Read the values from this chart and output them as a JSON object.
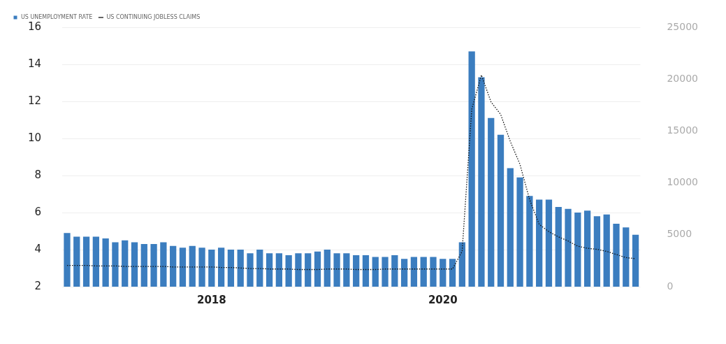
{
  "chart_data": {
    "type": "bar",
    "categories": [
      null,
      null,
      null,
      null,
      null,
      null,
      null,
      null,
      null,
      null,
      null,
      null,
      null,
      null,
      null,
      "2018",
      null,
      null,
      null,
      null,
      null,
      null,
      null,
      null,
      null,
      null,
      null,
      null,
      null,
      null,
      null,
      null,
      null,
      null,
      null,
      null,
      null,
      null,
      null,
      "2020",
      null,
      null,
      null,
      null,
      null,
      null,
      null,
      null,
      null,
      null,
      null,
      null,
      null,
      null,
      null,
      null,
      null,
      null,
      null,
      null
    ],
    "series": [
      {
        "name": "US UNEMPLOYMENT RATE",
        "color": "#3b7dbf",
        "values": [
          4.9,
          4.7,
          4.7,
          4.7,
          4.6,
          4.4,
          4.5,
          4.4,
          4.3,
          4.3,
          4.4,
          4.2,
          4.1,
          4.2,
          4.1,
          4.0,
          4.1,
          4.0,
          4.0,
          3.8,
          4.0,
          3.8,
          3.8,
          3.7,
          3.8,
          3.8,
          3.9,
          4.0,
          3.8,
          3.8,
          3.7,
          3.7,
          3.6,
          3.6,
          3.7,
          3.5,
          3.6,
          3.6,
          3.6,
          3.5,
          3.5,
          4.4,
          14.7,
          13.3,
          11.1,
          10.2,
          8.4,
          7.9,
          6.9,
          6.7,
          6.7,
          6.3,
          6.2,
          6.0,
          6.1,
          5.8,
          5.9,
          5.4,
          5.2,
          4.8
        ]
      },
      {
        "name": "US CONTINUING JOBLESS CLAIMS",
        "type": "line",
        "axis": "y2",
        "color": "#111111",
        "line_style": "dotted",
        "values": [
          2050,
          2050,
          2050,
          2000,
          2000,
          2000,
          1950,
          1950,
          1950,
          1950,
          1950,
          1900,
          1900,
          1900,
          1900,
          1900,
          1850,
          1850,
          1800,
          1750,
          1750,
          1700,
          1700,
          1700,
          1650,
          1650,
          1650,
          1700,
          1700,
          1700,
          1650,
          1650,
          1650,
          1700,
          1700,
          1700,
          1700,
          1700,
          1700,
          1700,
          1700,
          3400,
          17100,
          20400,
          17800,
          16600,
          14000,
          11800,
          8400,
          6000,
          5300,
          4800,
          4400,
          3900,
          3700,
          3600,
          3400,
          3100,
          2800,
          2700
        ]
      }
    ],
    "ylim": [
      2,
      16
    ],
    "yticks": [
      2,
      4,
      6,
      8,
      10,
      12,
      14,
      16
    ],
    "y2lim": [
      0,
      25000
    ],
    "y2ticks": [
      0,
      5000,
      10000,
      15000,
      20000,
      25000
    ],
    "grid": "y",
    "legend": "top left",
    "marker": "none"
  }
}
